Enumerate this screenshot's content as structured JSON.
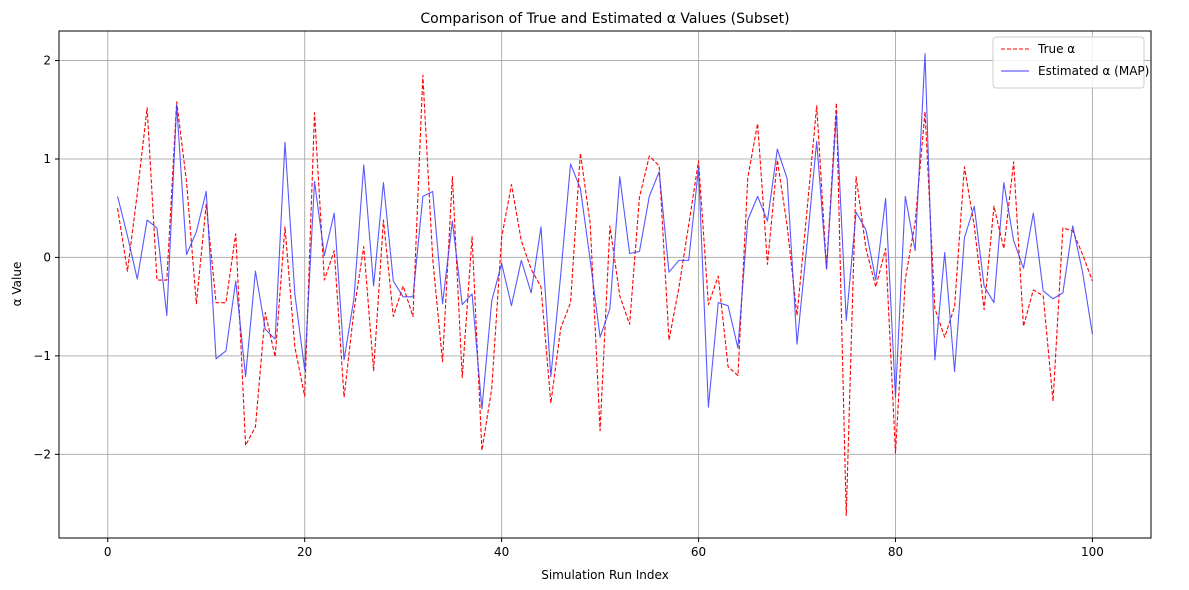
{
  "chart_data": {
    "type": "line",
    "title": "Comparison of True and Estimated α Values (Subset)",
    "xlabel": "Simulation Run Index",
    "ylabel": "α Value",
    "xlim": [
      -4.95,
      105.95
    ],
    "ylim": [
      -2.85,
      2.3
    ],
    "xticks": [
      0,
      20,
      40,
      60,
      80,
      100
    ],
    "yticks": [
      -2,
      -1,
      0,
      1,
      2
    ],
    "grid": true,
    "legend_position": "top-right",
    "x": [
      1,
      2,
      3,
      4,
      5,
      6,
      7,
      8,
      9,
      10,
      11,
      12,
      13,
      14,
      15,
      16,
      17,
      18,
      19,
      20,
      21,
      22,
      23,
      24,
      25,
      26,
      27,
      28,
      29,
      30,
      31,
      32,
      33,
      34,
      35,
      36,
      37,
      38,
      39,
      40,
      41,
      42,
      43,
      44,
      45,
      46,
      47,
      48,
      49,
      50,
      51,
      52,
      53,
      54,
      55,
      56,
      57,
      58,
      59,
      60,
      61,
      62,
      63,
      64,
      65,
      66,
      67,
      68,
      69,
      70,
      71,
      72,
      73,
      74,
      75,
      76,
      77,
      78,
      79,
      80,
      81,
      82,
      83,
      84,
      85,
      86,
      87,
      88,
      89,
      90,
      91,
      92,
      93,
      94,
      95,
      96,
      97,
      98,
      99,
      100
    ],
    "series": [
      {
        "name": "True α",
        "color": "#ff0000",
        "style": "dashed",
        "values": [
          0.5,
          -0.14,
          0.65,
          1.52,
          -0.23,
          -0.23,
          1.58,
          0.77,
          -0.47,
          0.54,
          -0.46,
          -0.46,
          0.24,
          -1.91,
          -1.72,
          -0.56,
          -1.01,
          0.31,
          -0.91,
          -1.41,
          1.47,
          -0.23,
          0.07,
          -1.42,
          -0.54,
          0.11,
          -1.15,
          0.38,
          -0.6,
          -0.29,
          -0.6,
          1.85,
          -0.01,
          -1.06,
          0.82,
          -1.22,
          0.21,
          -1.96,
          -1.33,
          0.2,
          0.74,
          0.17,
          -0.12,
          -0.3,
          -1.48,
          -0.72,
          -0.46,
          1.06,
          0.34,
          -1.76,
          0.32,
          -0.39,
          -0.68,
          0.61,
          1.03,
          0.93,
          -0.84,
          -0.31,
          0.33,
          0.98,
          -0.48,
          -0.19,
          -1.11,
          -1.2,
          0.81,
          1.36,
          -0.07,
          0.99,
          0.32,
          -0.59,
          0.46,
          1.54,
          -0.11,
          1.57,
          -2.62,
          0.82,
          0.09,
          -0.3,
          0.09,
          -1.99,
          -0.22,
          0.36,
          1.48,
          -0.52,
          -0.81,
          -0.5,
          0.92,
          0.32,
          -0.53,
          0.52,
          0.09,
          0.97,
          -0.7,
          -0.33,
          -0.39,
          -1.46,
          0.3,
          0.27,
          0.03,
          -0.24
        ]
      },
      {
        "name": "Estimated α (MAP)",
        "color": "#3b3bff",
        "style": "solid",
        "values": [
          0.62,
          0.22,
          -0.22,
          0.38,
          0.3,
          -0.59,
          1.55,
          0.03,
          0.26,
          0.67,
          -1.03,
          -0.95,
          -0.24,
          -1.21,
          -0.14,
          -0.73,
          -0.83,
          1.17,
          -0.37,
          -1.14,
          0.77,
          0.02,
          0.45,
          -1.04,
          -0.42,
          0.94,
          -0.29,
          0.76,
          -0.24,
          -0.4,
          -0.4,
          0.62,
          0.67,
          -0.47,
          0.37,
          -0.48,
          -0.37,
          -1.54,
          -0.44,
          -0.06,
          -0.49,
          -0.03,
          -0.36,
          0.31,
          -1.21,
          -0.18,
          0.95,
          0.7,
          -0.03,
          -0.81,
          -0.52,
          0.82,
          0.04,
          0.06,
          0.62,
          0.87,
          -0.15,
          -0.03,
          -0.03,
          0.91,
          -1.52,
          -0.46,
          -0.49,
          -0.92,
          0.38,
          0.62,
          0.37,
          1.1,
          0.8,
          -0.88,
          0.12,
          1.18,
          -0.12,
          1.45,
          -0.64,
          0.46,
          0.28,
          -0.23,
          0.6,
          -1.42,
          0.62,
          0.07,
          2.07,
          -1.04,
          0.05,
          -1.16,
          0.2,
          0.52,
          -0.29,
          -0.46,
          0.76,
          0.17,
          -0.11,
          0.45,
          -0.34,
          -0.42,
          -0.36,
          0.32,
          -0.15,
          -0.78
        ]
      }
    ]
  }
}
